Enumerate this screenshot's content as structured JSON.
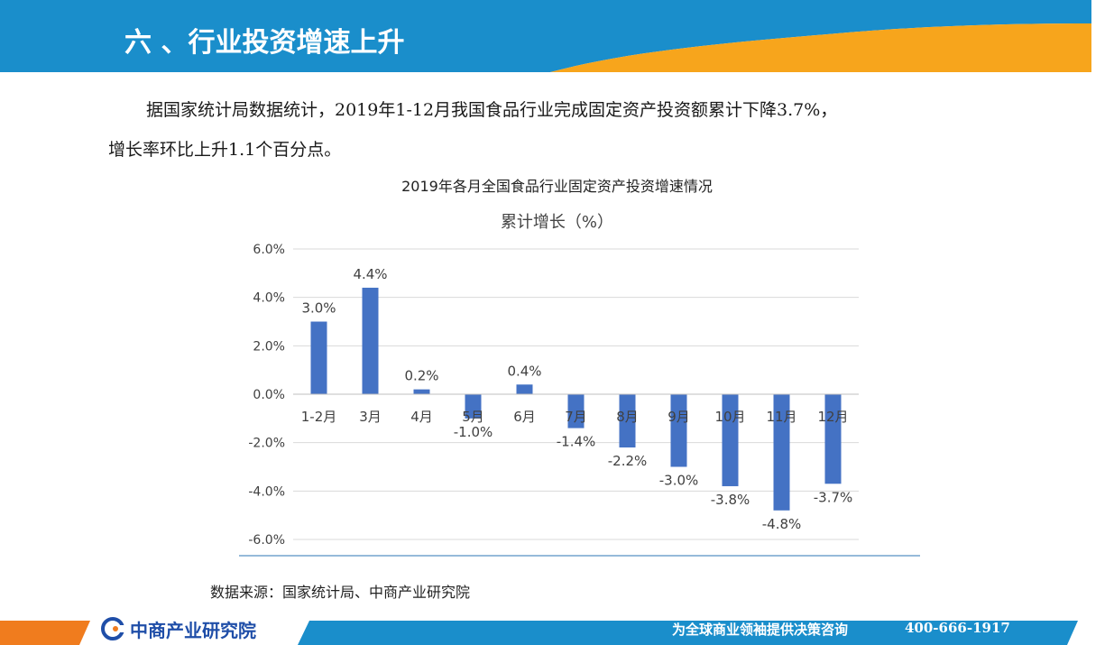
{
  "header": {
    "title": "六 、行业投资增速上升",
    "colors": {
      "blue": "#1a8ecb",
      "orange": "#f7a51c"
    }
  },
  "body": {
    "line1": "据国家统计局数据统计，2019年1-12月我国食品行业完成固定资产投资额累计下降3.7%，",
    "line2": "增长率环比上升1.1个百分点。"
  },
  "chart_data": {
    "type": "bar",
    "title": "2019年各月全国食品行业固定资产投资增速情况",
    "subtitle": "累计增长（%）",
    "categories": [
      "1-2月",
      "3月",
      "4月",
      "5月",
      "6月",
      "7月",
      "8月",
      "9月",
      "10月",
      "11月",
      "12月"
    ],
    "values": [
      3.0,
      4.4,
      0.2,
      -1.0,
      0.4,
      -1.4,
      -2.2,
      -3.0,
      -3.8,
      -4.8,
      -3.7
    ],
    "value_labels": [
      "3.0%",
      "4.4%",
      "0.2%",
      "-1.0%",
      "0.4%",
      "-1.4%",
      "-2.2%",
      "-3.0%",
      "-3.8%",
      "-4.8%",
      "-3.7%"
    ],
    "ylim": [
      -6.0,
      6.0
    ],
    "yticks": [
      6.0,
      4.0,
      2.0,
      0.0,
      -2.0,
      -4.0,
      -6.0
    ],
    "ytick_labels": [
      "6.0%",
      "4.0%",
      "2.0%",
      "0.0%",
      "-2.0%",
      "-4.0%",
      "-6.0%"
    ],
    "grid": true,
    "bar_color": "#4472c4"
  },
  "source": "数据来源：国家统计局、中商产业研究院",
  "footer": {
    "brand": "中商产业研究院",
    "slogan": "为全球商业领袖提供决策咨询",
    "phone": "400-666-1917"
  }
}
